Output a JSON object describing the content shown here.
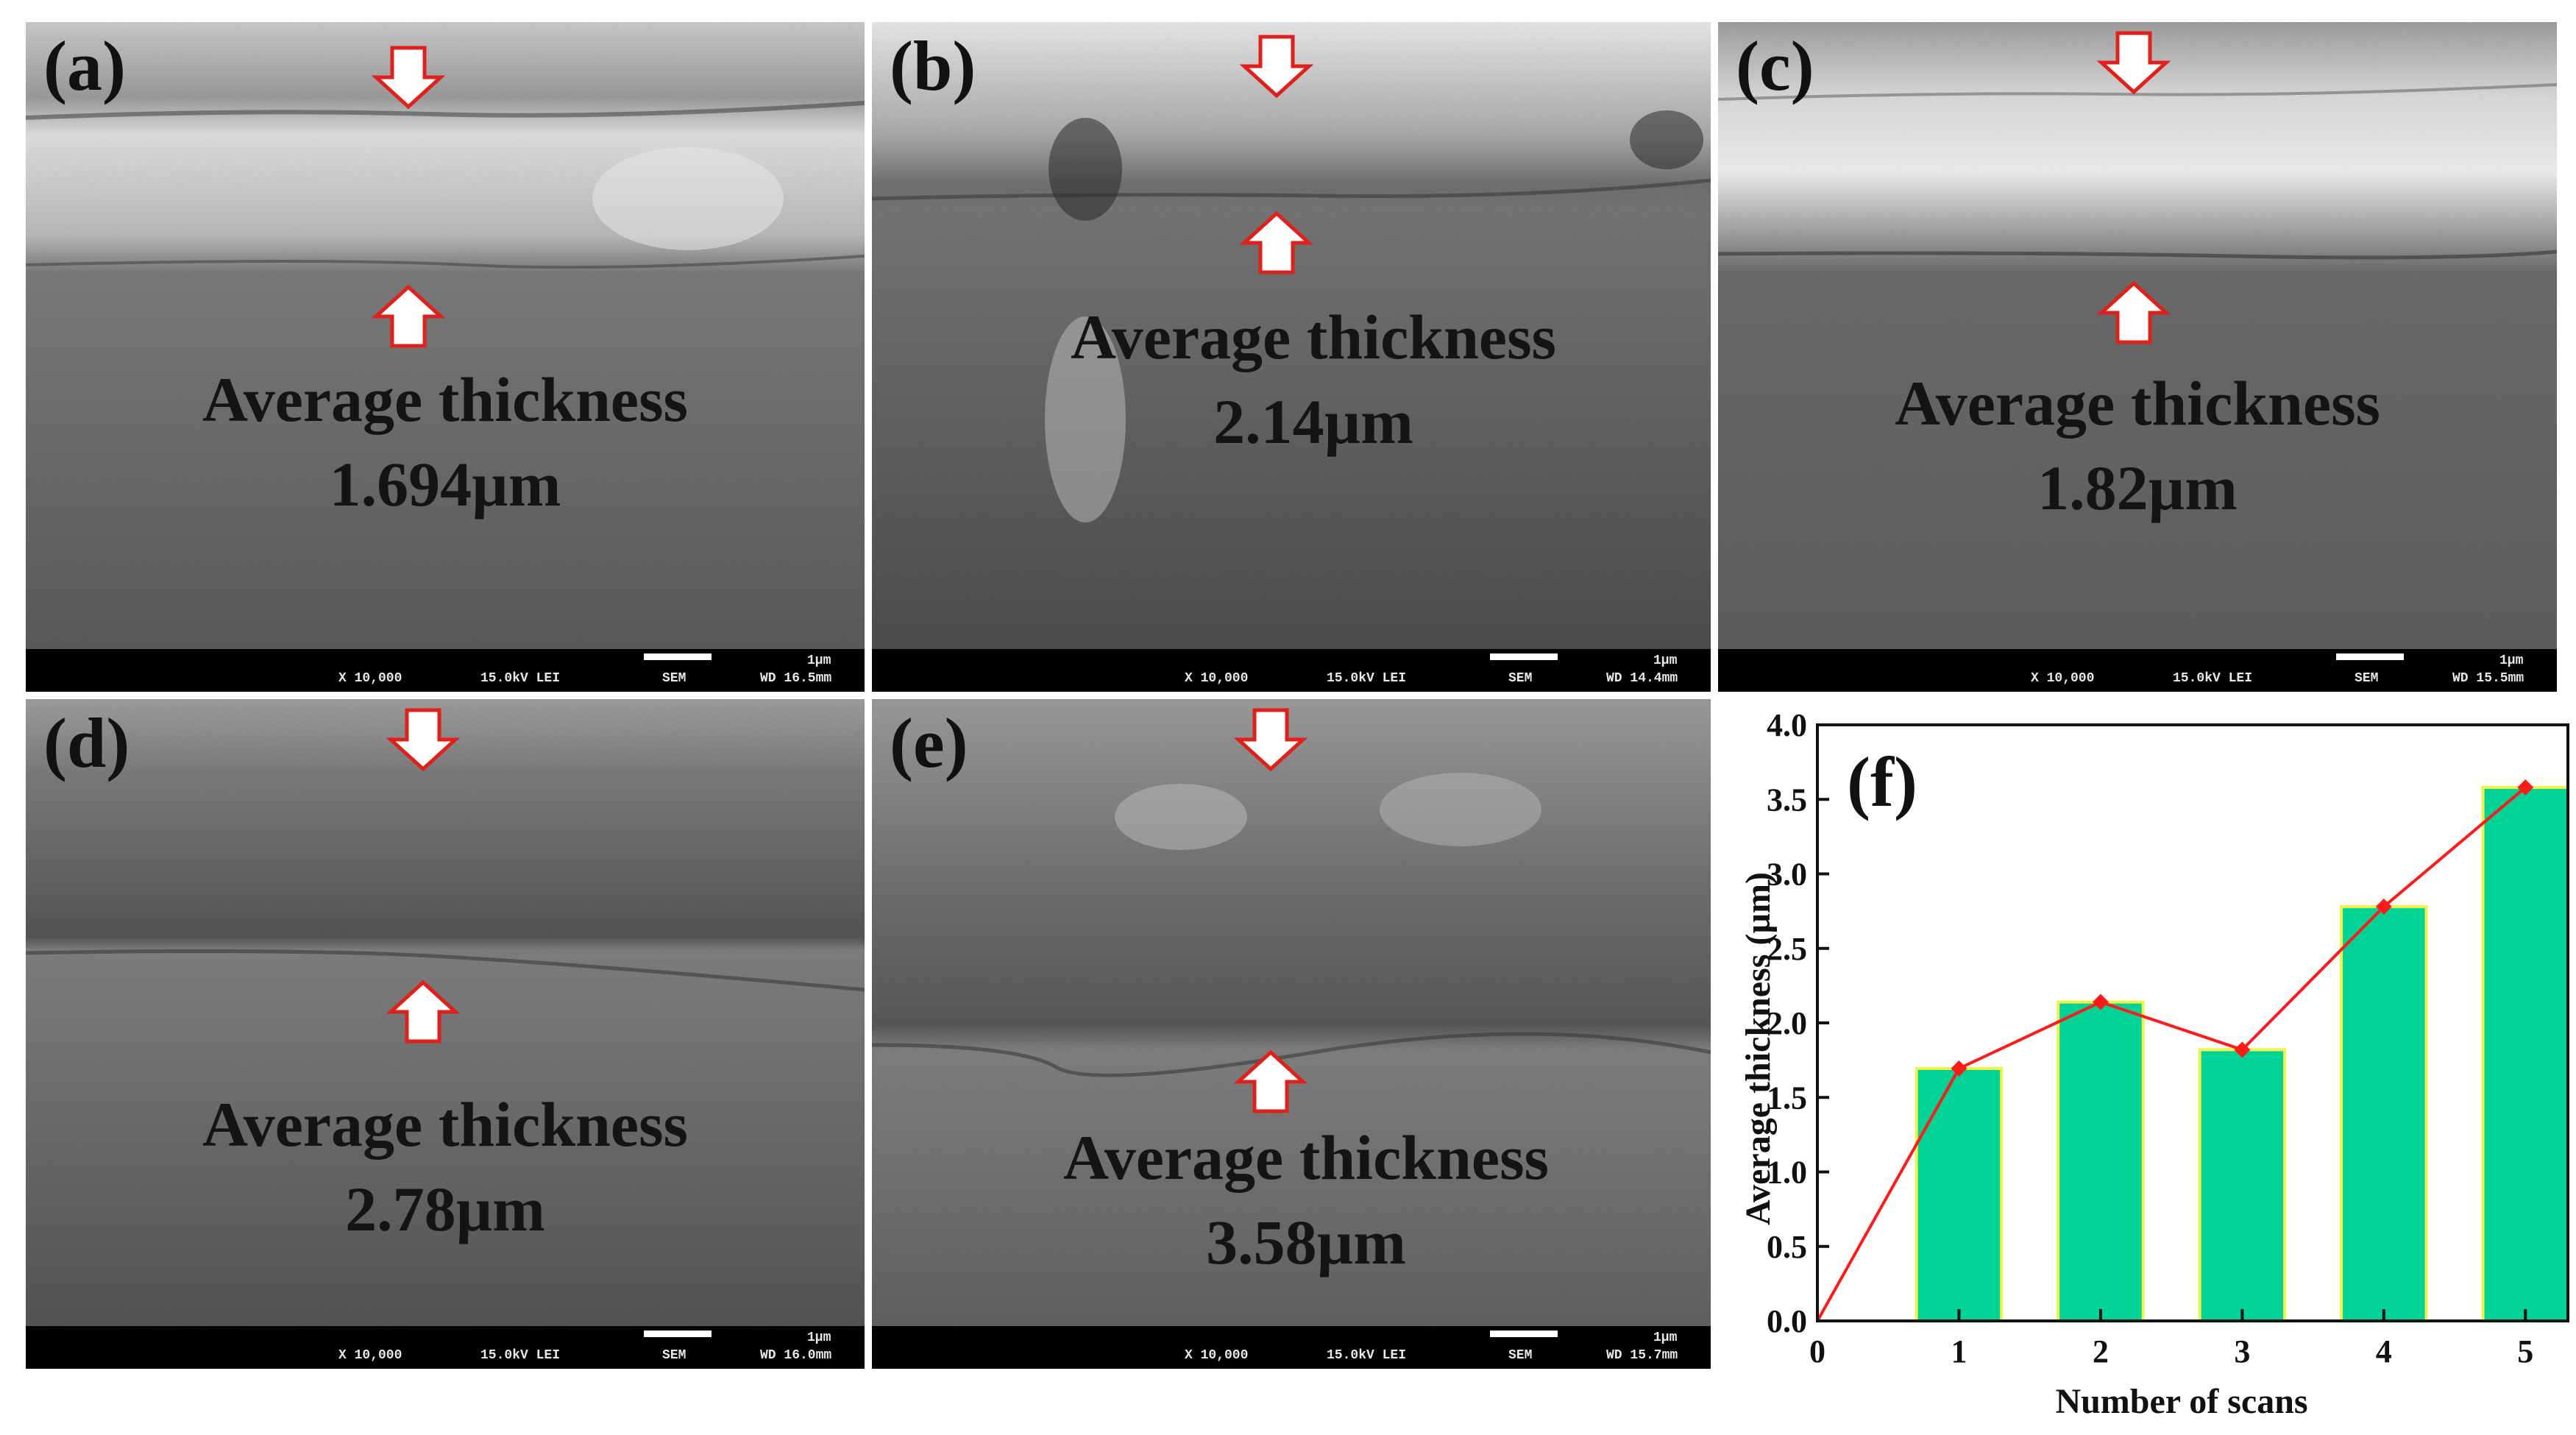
{
  "colors": {
    "bar_fill": "#00d395",
    "bar_edge": "#f2f24a",
    "line": "#ff1a1a",
    "sem_dark": "#585858",
    "sem_light": "#cfcfcf",
    "arrow_stroke": "#e0201a"
  },
  "panels": [
    {
      "label": "(a)",
      "title": "Average thickness",
      "value": "1.694µm",
      "databar": {
        "mag": "X 10,000",
        "kv": "15.0kV LEI",
        "sem": "SEM",
        "scale": "1µm",
        "wd": "WD 16.5mm"
      }
    },
    {
      "label": "(b)",
      "title": "Average thickness",
      "value": "2.14µm",
      "databar": {
        "mag": "X 10,000",
        "kv": "15.0kV LEI",
        "sem": "SEM",
        "scale": "1µm",
        "wd": "WD 14.4mm"
      }
    },
    {
      "label": "(c)",
      "title": "Average thickness",
      "value": "1.82µm",
      "databar": {
        "mag": "X 10,000",
        "kv": "15.0kV LEI",
        "sem": "SEM",
        "scale": "1µm",
        "wd": "WD 15.5mm"
      }
    },
    {
      "label": "(d)",
      "title": "Average thickness",
      "value": "2.78µm",
      "databar": {
        "mag": "X 10,000",
        "kv": "15.0kV LEI",
        "sem": "SEM",
        "scale": "1µm",
        "wd": "WD 16.0mm"
      }
    },
    {
      "label": "(e)",
      "title": "Average thickness",
      "value": "3.58µm",
      "databar": {
        "mag": "X 10,000",
        "kv": "15.0kV LEI",
        "sem": "SEM",
        "scale": "1µm",
        "wd": "WD 15.7mm"
      }
    }
  ],
  "chart_data": {
    "type": "bar",
    "panel_label": "(f)",
    "xlabel": "Number of scans",
    "ylabel": "Average thickness (µm)",
    "categories": [
      1,
      2,
      3,
      4,
      5
    ],
    "values": [
      1.694,
      2.14,
      1.82,
      2.78,
      3.58
    ],
    "line": {
      "x": [
        0,
        1,
        2,
        3,
        4,
        5
      ],
      "y": [
        0,
        1.694,
        2.14,
        1.82,
        2.78,
        3.58
      ]
    },
    "xlim": [
      0,
      5.3
    ],
    "ylim": [
      0,
      4.0
    ],
    "xticks": [
      "0",
      "1",
      "2",
      "3",
      "4",
      "5"
    ],
    "yticks": [
      "0.0",
      "0.5",
      "1.0",
      "1.5",
      "2.0",
      "2.5",
      "3.0",
      "3.5",
      "4.0"
    ],
    "grid": false,
    "legend": "none"
  }
}
